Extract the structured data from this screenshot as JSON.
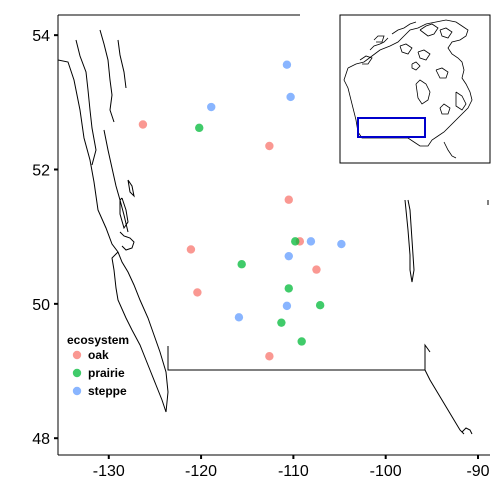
{
  "chart_data": {
    "type": "scatter",
    "title": "",
    "xlabel": "",
    "ylabel": "",
    "xlim": [
      -135.5,
      -88.7
    ],
    "ylim": [
      47.75,
      54.3
    ],
    "x_ticks": [
      -130,
      -120,
      -110,
      -100,
      -90
    ],
    "x_tick_labels": [
      "-130",
      "-120",
      "-110",
      "-100",
      "-90"
    ],
    "y_ticks": [
      48,
      50,
      52,
      54
    ],
    "y_tick_labels": [
      "48",
      "50",
      "52",
      "54"
    ],
    "legend": {
      "title": "ecosystem",
      "placement": "bottom-left"
    },
    "series": [
      {
        "name": "oak",
        "color": "#F8766D",
        "points": [
          {
            "x": -126.3,
            "y": 52.67
          },
          {
            "x": -112.6,
            "y": 52.35
          },
          {
            "x": -110.5,
            "y": 51.55
          },
          {
            "x": -121.1,
            "y": 50.81
          },
          {
            "x": -109.3,
            "y": 50.93
          },
          {
            "x": -107.5,
            "y": 50.51
          },
          {
            "x": -120.4,
            "y": 50.17
          },
          {
            "x": -112.6,
            "y": 49.22
          }
        ]
      },
      {
        "name": "prairie",
        "color": "#00BA38",
        "points": [
          {
            "x": -120.2,
            "y": 52.62
          },
          {
            "x": -115.6,
            "y": 50.59
          },
          {
            "x": -109.8,
            "y": 50.93
          },
          {
            "x": -110.5,
            "y": 50.23
          },
          {
            "x": -107.1,
            "y": 49.98
          },
          {
            "x": -111.3,
            "y": 49.72
          },
          {
            "x": -109.1,
            "y": 49.44
          }
        ]
      },
      {
        "name": "steppe",
        "color": "#619CFF",
        "points": [
          {
            "x": -110.7,
            "y": 53.56
          },
          {
            "x": -118.9,
            "y": 52.93
          },
          {
            "x": -110.3,
            "y": 53.08
          },
          {
            "x": -108.1,
            "y": 50.93
          },
          {
            "x": -104.8,
            "y": 50.89
          },
          {
            "x": -110.5,
            "y": 50.71
          },
          {
            "x": -110.7,
            "y": 49.97
          },
          {
            "x": -115.9,
            "y": 49.8
          }
        ]
      }
    ],
    "inset": {
      "description_visible": false,
      "highlight_color": "#0000CC"
    }
  }
}
